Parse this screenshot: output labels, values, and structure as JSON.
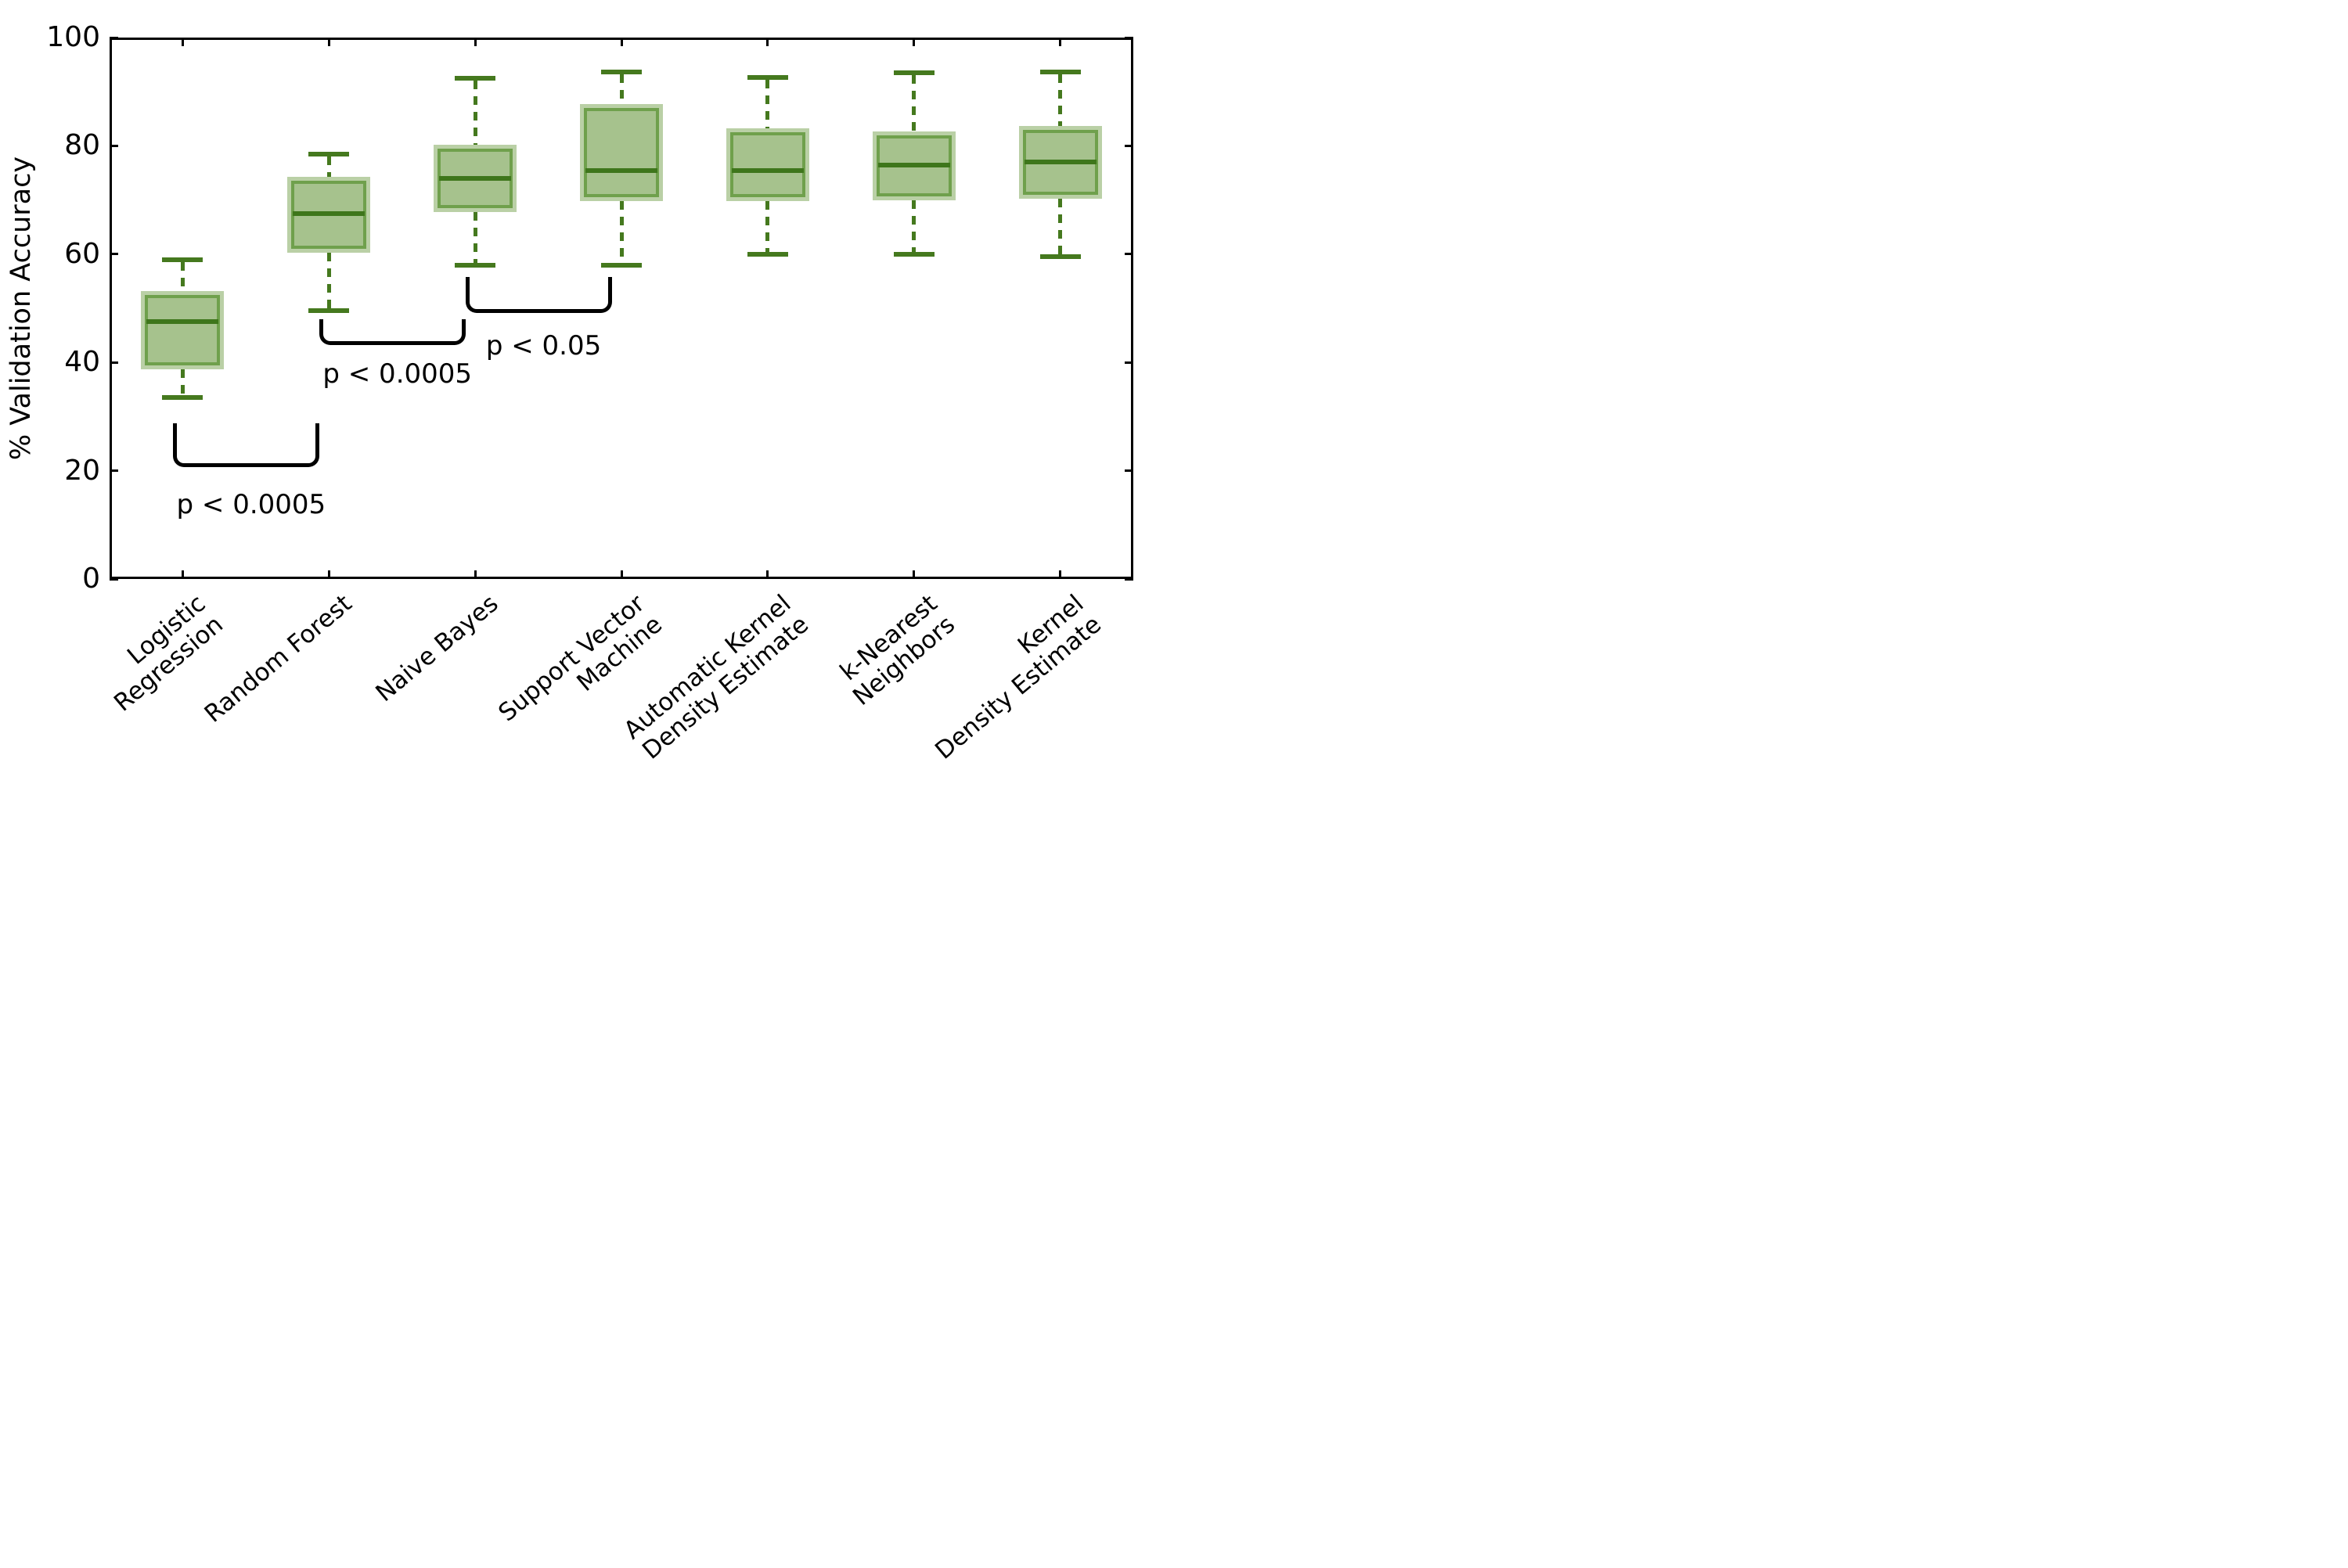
{
  "chart_data": {
    "type": "box",
    "title": "",
    "xlabel": "",
    "ylabel": "% Validation Accuracy",
    "ylim": [
      0,
      100
    ],
    "yticks": [
      0,
      20,
      40,
      60,
      80,
      100
    ],
    "grid": false,
    "legend": null,
    "categories": [
      "Logistic\nRegression",
      "Random Forest",
      "Naive Bayes",
      "Support Vector\nMachine",
      "Automatic Kernel\nDensity Estimate",
      "k-Nearest\nNeighbors",
      "Kernel\nDensity Estimate"
    ],
    "series": [
      {
        "name": "Logistic Regression",
        "whisker_low": 33.5,
        "q1": 39.5,
        "median": 47.5,
        "q3": 52.5,
        "whisker_high": 59.0
      },
      {
        "name": "Random Forest",
        "whisker_low": 49.5,
        "q1": 61.0,
        "median": 67.5,
        "q3": 73.5,
        "whisker_high": 78.5
      },
      {
        "name": "Naive Bayes",
        "whisker_low": 58.0,
        "q1": 68.5,
        "median": 74.0,
        "q3": 79.5,
        "whisker_high": 92.5
      },
      {
        "name": "Support Vector Machine",
        "whisker_low": 58.0,
        "q1": 70.5,
        "median": 75.5,
        "q3": 87.0,
        "whisker_high": 93.7
      },
      {
        "name": "Automatic Kernel Density Estimate",
        "whisker_low": 60.0,
        "q1": 70.5,
        "median": 75.5,
        "q3": 82.5,
        "whisker_high": 92.7
      },
      {
        "name": "k-Nearest Neighbors",
        "whisker_low": 60.0,
        "q1": 70.7,
        "median": 76.5,
        "q3": 82.0,
        "whisker_high": 93.5
      },
      {
        "name": "Kernel Density Estimate",
        "whisker_low": 59.5,
        "q1": 71.0,
        "median": 77.0,
        "q3": 83.0,
        "whisker_high": 93.6
      }
    ],
    "significance_brackets": [
      {
        "label": "p < 0.0005",
        "between": [
          "Logistic Regression",
          "Random Forest"
        ],
        "box_indices": [
          0,
          1
        ],
        "bracket_top_value": 28.8,
        "bracket_bottom_value": 20.7,
        "label_value": 13.7
      },
      {
        "label": "p < 0.0005",
        "between": [
          "Random Forest",
          "Naive Bayes"
        ],
        "box_indices": [
          1,
          2
        ],
        "bracket_top_value": 48.0,
        "bracket_bottom_value": 43.2,
        "label_value": 37.8
      },
      {
        "label": "p < 0.05",
        "between": [
          "Naive Bayes",
          "Support Vector Machine"
        ],
        "box_indices": [
          2,
          3
        ],
        "bracket_top_value": 55.8,
        "bracket_bottom_value": 49.1,
        "label_value": 43.0
      }
    ],
    "colors": {
      "box_fill": "#a6c28d",
      "box_edge": "#6fa04c",
      "box_halo": "#bad0a6",
      "whisker": "#45791e",
      "median": "#3e761b",
      "axis": "#000000",
      "bracket": "#000000",
      "background": "#ffffff"
    }
  }
}
